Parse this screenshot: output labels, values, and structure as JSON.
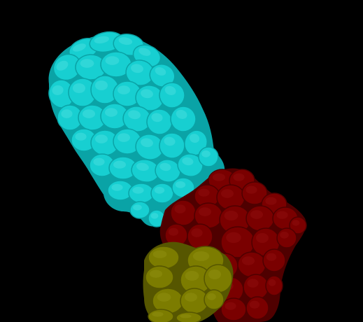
{
  "scene": {
    "background_color": "#000000",
    "regions": [
      {
        "name": "cyan-lobed-body",
        "color": "#17cfd1",
        "shade": "#0aa3a6",
        "highlight": "#5fe6e6"
      },
      {
        "name": "dark-red-cluster",
        "color": "#7a0000",
        "shade": "#4f0000",
        "highlight": "#9a1414"
      },
      {
        "name": "olive-cluster",
        "color": "#7c7c00",
        "shade": "#565600",
        "highlight": "#9a9a18"
      }
    ]
  }
}
